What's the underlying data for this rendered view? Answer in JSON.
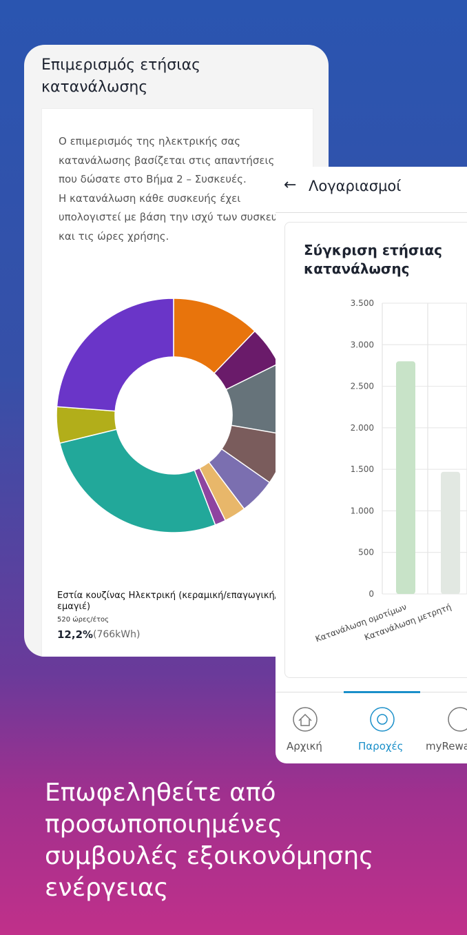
{
  "left_card": {
    "title": "Επιμερισμός ετήσιας κατανάλωσης",
    "description": [
      "Ο επιμερισμός της ηλεκτρικής σας",
      "κατανάλωσης βασίζεται στις απαντήσεις",
      "που δώσατε στο Βήμα 2 – Συσκευές.",
      "Η κατανάλωση κάθε συσκευής έχει",
      "υπολογιστεί με βάση την ισχύ των συσκευών",
      "και τις ώρες χρήσης."
    ],
    "selected": {
      "name": "Εστία κουζίνας Ηλεκτρική (κεραμική/επαγωγική/εμαγιέ)",
      "hours": "520 ώρες/έτος",
      "percent": "12,2%",
      "energy": "(766kWh)"
    }
  },
  "right_card": {
    "header": "Λογαριασμοί",
    "nav": [
      "Αρχική",
      "Παροχές",
      "myRewards"
    ]
  },
  "promo": [
    "Επωφεληθείτε από",
    "προσωποποιημένες",
    "συμβουλές εξοικονόμησης",
    "ενέργειας"
  ],
  "chart_data": [
    {
      "type": "donut",
      "values": [
        12.2,
        5.5,
        10,
        7,
        5,
        3,
        1.5,
        27,
        5,
        23.8
      ],
      "colors": [
        "#e8740c",
        "#6a1b6a",
        "#66737a",
        "#7a5c5c",
        "#7b6fb0",
        "#e8b76a",
        "#8e44a0",
        "#22a89a",
        "#b2ae1a",
        "#6a35c8"
      ]
    },
    {
      "type": "bar",
      "title": "Σύγκριση ετήσιας κατανάλωσης",
      "categories": [
        "Κατανάλωση ομοτίμων",
        "Κατανάλωση μετρητή"
      ],
      "values": [
        2800,
        1470
      ],
      "colors": [
        "#c8e3c8",
        "#e2e8e2"
      ],
      "ylim": [
        0,
        3500
      ],
      "yticks": [
        0,
        500,
        {
          "value": 1000,
          "label": "1.000"
        },
        {
          "value": 1500,
          "label": "1.500"
        },
        {
          "value": 2000,
          "label": "2.000"
        },
        {
          "value": 2500,
          "label": "2.500"
        },
        {
          "value": 3000,
          "label": "3.000"
        },
        {
          "value": 3500,
          "label": "3.500"
        }
      ],
      "grid": true
    }
  ]
}
